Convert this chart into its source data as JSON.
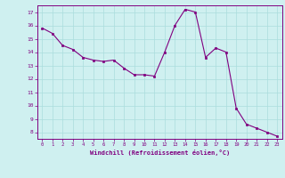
{
  "x": [
    0,
    1,
    2,
    3,
    4,
    5,
    6,
    7,
    8,
    9,
    10,
    11,
    12,
    13,
    14,
    15,
    16,
    17,
    18,
    19,
    20,
    21,
    22,
    23
  ],
  "y": [
    15.8,
    15.4,
    14.5,
    14.2,
    13.6,
    13.4,
    13.3,
    13.4,
    12.8,
    12.3,
    12.3,
    12.2,
    14.0,
    16.0,
    17.2,
    17.0,
    13.6,
    14.3,
    14.0,
    9.8,
    8.6,
    8.3,
    8.0,
    7.7
  ],
  "line_color": "#800080",
  "marker": "s",
  "marker_size": 1.8,
  "bg_color": "#cff0f0",
  "grid_color": "#aadddd",
  "xlabel": "Windchill (Refroidissement éolien,°C)",
  "xlabel_color": "#800080",
  "tick_color": "#800080",
  "ylim": [
    7.5,
    17.5
  ],
  "xlim": [
    -0.5,
    23.5
  ],
  "yticks": [
    8,
    9,
    10,
    11,
    12,
    13,
    14,
    15,
    16,
    17
  ],
  "xticks": [
    0,
    1,
    2,
    3,
    4,
    5,
    6,
    7,
    8,
    9,
    10,
    11,
    12,
    13,
    14,
    15,
    16,
    17,
    18,
    19,
    20,
    21,
    22,
    23
  ]
}
